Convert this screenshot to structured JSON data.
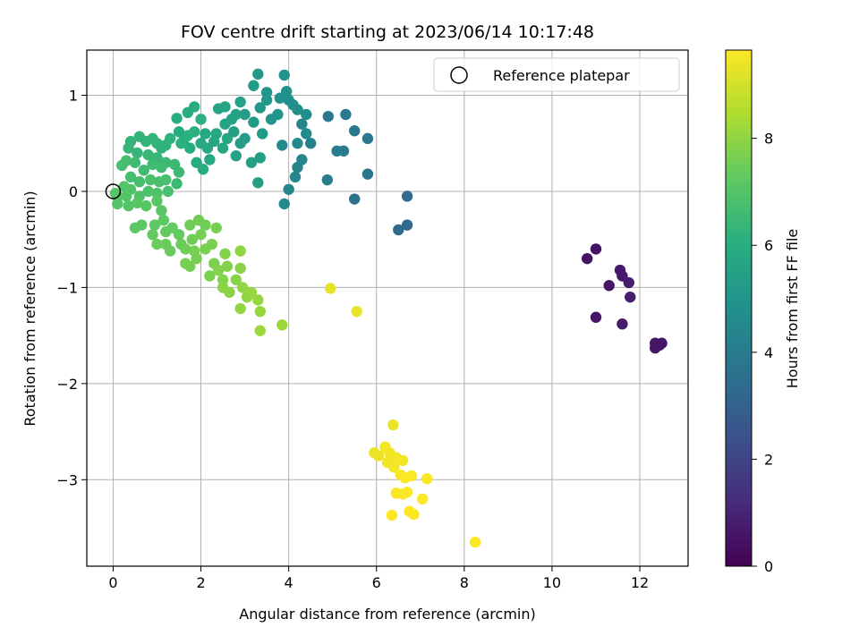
{
  "chart_data": {
    "type": "scatter",
    "title": "FOV centre drift starting at 2023/06/14 10:17:48",
    "xlabel": "Angular distance from reference (arcmin)",
    "ylabel": "Rotation from reference (arcmin)",
    "xlim": [
      -0.6,
      13.1
    ],
    "ylim": [
      -3.9,
      1.47
    ],
    "xticks": [
      0,
      2,
      4,
      6,
      8,
      10,
      12
    ],
    "yticks": [
      1,
      0,
      -1,
      -2,
      -3
    ],
    "xtick_labels": [
      "0",
      "2",
      "4",
      "6",
      "8",
      "10",
      "12"
    ],
    "ytick_labels": [
      "1",
      "0",
      "−1",
      "−2",
      "−3"
    ],
    "grid": true,
    "legend": {
      "position": "top-right",
      "entries": [
        "Reference platepar"
      ]
    },
    "reference_point": {
      "x": 0,
      "y": 0,
      "marker": "open-circle",
      "label": "Reference platepar"
    },
    "colorbar": {
      "label": "Hours from first FF file",
      "colormap": "viridis",
      "range": [
        0,
        9.65
      ],
      "ticks": [
        0,
        2,
        4,
        6,
        8
      ],
      "tick_labels": [
        "0",
        "2",
        "4",
        "6",
        "8"
      ]
    },
    "points": [
      {
        "x": 10.8,
        "y": -0.7,
        "c": 0.5
      },
      {
        "x": 11.0,
        "y": -0.6,
        "c": 0.5
      },
      {
        "x": 11.3,
        "y": -0.98,
        "c": 0.6
      },
      {
        "x": 11.0,
        "y": -1.31,
        "c": 0.6
      },
      {
        "x": 11.55,
        "y": -0.82,
        "c": 0.7
      },
      {
        "x": 11.6,
        "y": -0.88,
        "c": 0.7
      },
      {
        "x": 11.75,
        "y": -0.95,
        "c": 0.8
      },
      {
        "x": 11.78,
        "y": -1.1,
        "c": 0.8
      },
      {
        "x": 11.6,
        "y": -1.38,
        "c": 0.7
      },
      {
        "x": 12.35,
        "y": -1.58,
        "c": 0.6
      },
      {
        "x": 12.45,
        "y": -1.6,
        "c": 0.6
      },
      {
        "x": 12.5,
        "y": -1.58,
        "c": 0.6
      },
      {
        "x": 12.35,
        "y": -1.63,
        "c": 0.6
      },
      {
        "x": 6.5,
        "y": -0.4,
        "c": 3.3
      },
      {
        "x": 6.7,
        "y": -0.35,
        "c": 3.3
      },
      {
        "x": 6.7,
        "y": -0.05,
        "c": 3.4
      },
      {
        "x": 5.5,
        "y": -0.08,
        "c": 3.6
      },
      {
        "x": 5.8,
        "y": 0.18,
        "c": 3.7
      },
      {
        "x": 5.8,
        "y": 0.55,
        "c": 3.8
      },
      {
        "x": 5.5,
        "y": 0.63,
        "c": 3.8
      },
      {
        "x": 5.3,
        "y": 0.8,
        "c": 3.9
      },
      {
        "x": 4.9,
        "y": 0.78,
        "c": 3.9
      },
      {
        "x": 5.1,
        "y": 0.42,
        "c": 4.0
      },
      {
        "x": 5.25,
        "y": 0.42,
        "c": 4.0
      },
      {
        "x": 4.88,
        "y": 0.12,
        "c": 4.1
      },
      {
        "x": 4.5,
        "y": 0.5,
        "c": 4.2
      },
      {
        "x": 4.3,
        "y": 0.7,
        "c": 4.3
      },
      {
        "x": 4.3,
        "y": 0.33,
        "c": 4.3
      },
      {
        "x": 4.2,
        "y": 0.25,
        "c": 4.3
      },
      {
        "x": 4.15,
        "y": 0.15,
        "c": 4.4
      },
      {
        "x": 4.0,
        "y": 0.02,
        "c": 4.4
      },
      {
        "x": 3.9,
        "y": -0.13,
        "c": 4.5
      },
      {
        "x": 3.85,
        "y": 0.48,
        "c": 4.5
      },
      {
        "x": 4.2,
        "y": 0.5,
        "c": 4.6
      },
      {
        "x": 4.4,
        "y": 0.6,
        "c": 4.6
      },
      {
        "x": 4.4,
        "y": 0.8,
        "c": 4.7
      },
      {
        "x": 4.2,
        "y": 0.85,
        "c": 4.7
      },
      {
        "x": 4.1,
        "y": 0.9,
        "c": 4.8
      },
      {
        "x": 4.0,
        "y": 0.95,
        "c": 4.8
      },
      {
        "x": 3.95,
        "y": 1.04,
        "c": 4.9
      },
      {
        "x": 3.9,
        "y": 1.21,
        "c": 4.9
      },
      {
        "x": 3.8,
        "y": 0.97,
        "c": 4.9
      },
      {
        "x": 3.75,
        "y": 0.8,
        "c": 5.0
      },
      {
        "x": 3.6,
        "y": 0.75,
        "c": 5.0
      },
      {
        "x": 3.5,
        "y": 1.03,
        "c": 5.0
      },
      {
        "x": 3.5,
        "y": 0.95,
        "c": 5.1
      },
      {
        "x": 3.35,
        "y": 0.87,
        "c": 5.1
      },
      {
        "x": 3.3,
        "y": 1.22,
        "c": 5.1
      },
      {
        "x": 3.2,
        "y": 1.1,
        "c": 5.2
      },
      {
        "x": 3.4,
        "y": 0.6,
        "c": 5.2
      },
      {
        "x": 3.2,
        "y": 0.72,
        "c": 5.2
      },
      {
        "x": 3.0,
        "y": 0.8,
        "c": 5.3
      },
      {
        "x": 3.0,
        "y": 0.55,
        "c": 5.3
      },
      {
        "x": 2.9,
        "y": 0.5,
        "c": 5.3
      },
      {
        "x": 2.75,
        "y": 0.62,
        "c": 5.4
      },
      {
        "x": 3.35,
        "y": 0.35,
        "c": 5.4
      },
      {
        "x": 3.3,
        "y": 0.09,
        "c": 5.4
      },
      {
        "x": 3.15,
        "y": 0.3,
        "c": 5.4
      },
      {
        "x": 2.8,
        "y": 0.37,
        "c": 5.5
      },
      {
        "x": 2.9,
        "y": 0.93,
        "c": 5.5
      },
      {
        "x": 2.8,
        "y": 0.8,
        "c": 5.5
      },
      {
        "x": 2.7,
        "y": 0.75,
        "c": 5.6
      },
      {
        "x": 2.55,
        "y": 0.88,
        "c": 5.6
      },
      {
        "x": 2.4,
        "y": 0.86,
        "c": 5.6
      },
      {
        "x": 2.55,
        "y": 0.7,
        "c": 5.6
      },
      {
        "x": 2.6,
        "y": 0.55,
        "c": 5.7
      },
      {
        "x": 2.35,
        "y": 0.6,
        "c": 5.7
      },
      {
        "x": 2.5,
        "y": 0.45,
        "c": 5.7
      },
      {
        "x": 2.3,
        "y": 0.52,
        "c": 5.7
      },
      {
        "x": 2.1,
        "y": 0.6,
        "c": 5.8
      },
      {
        "x": 2.15,
        "y": 0.45,
        "c": 5.8
      },
      {
        "x": 2.0,
        "y": 0.5,
        "c": 5.8
      },
      {
        "x": 2.2,
        "y": 0.33,
        "c": 5.8
      },
      {
        "x": 2.05,
        "y": 0.23,
        "c": 5.9
      },
      {
        "x": 1.9,
        "y": 0.3,
        "c": 5.9
      },
      {
        "x": 1.75,
        "y": 0.45,
        "c": 5.9
      },
      {
        "x": 1.6,
        "y": 0.52,
        "c": 5.9
      },
      {
        "x": 1.5,
        "y": 0.62,
        "c": 6.0
      },
      {
        "x": 1.45,
        "y": 0.76,
        "c": 6.0
      },
      {
        "x": 1.7,
        "y": 0.82,
        "c": 6.0
      },
      {
        "x": 1.85,
        "y": 0.88,
        "c": 6.0
      },
      {
        "x": 2.0,
        "y": 0.75,
        "c": 6.1
      },
      {
        "x": 1.85,
        "y": 0.62,
        "c": 6.1
      },
      {
        "x": 1.7,
        "y": 0.58,
        "c": 6.1
      },
      {
        "x": 1.55,
        "y": 0.5,
        "c": 6.1
      },
      {
        "x": 1.3,
        "y": 0.55,
        "c": 6.2
      },
      {
        "x": 1.2,
        "y": 0.48,
        "c": 6.2
      },
      {
        "x": 1.1,
        "y": 0.45,
        "c": 6.2
      },
      {
        "x": 1.0,
        "y": 0.5,
        "c": 6.2
      },
      {
        "x": 0.9,
        "y": 0.55,
        "c": 6.3
      },
      {
        "x": 0.75,
        "y": 0.52,
        "c": 6.3
      },
      {
        "x": 0.6,
        "y": 0.57,
        "c": 6.3
      },
      {
        "x": 0.4,
        "y": 0.52,
        "c": 6.3
      },
      {
        "x": 0.35,
        "y": 0.45,
        "c": 6.4
      },
      {
        "x": 0.55,
        "y": 0.4,
        "c": 6.4
      },
      {
        "x": 0.8,
        "y": 0.38,
        "c": 6.4
      },
      {
        "x": 1.0,
        "y": 0.35,
        "c": 6.4
      },
      {
        "x": 1.2,
        "y": 0.3,
        "c": 6.5
      },
      {
        "x": 1.4,
        "y": 0.28,
        "c": 6.5
      },
      {
        "x": 1.5,
        "y": 0.2,
        "c": 6.5
      },
      {
        "x": 1.45,
        "y": 0.08,
        "c": 6.5
      },
      {
        "x": 1.1,
        "y": 0.25,
        "c": 6.6
      },
      {
        "x": 0.9,
        "y": 0.28,
        "c": 6.6
      },
      {
        "x": 0.7,
        "y": 0.22,
        "c": 6.6
      },
      {
        "x": 0.5,
        "y": 0.3,
        "c": 6.6
      },
      {
        "x": 0.3,
        "y": 0.32,
        "c": 6.7
      },
      {
        "x": 0.2,
        "y": 0.27,
        "c": 6.7
      },
      {
        "x": 0.4,
        "y": 0.15,
        "c": 6.7
      },
      {
        "x": 0.6,
        "y": 0.1,
        "c": 6.7
      },
      {
        "x": 0.85,
        "y": 0.12,
        "c": 6.8
      },
      {
        "x": 1.05,
        "y": 0.1,
        "c": 6.8
      },
      {
        "x": 1.2,
        "y": 0.12,
        "c": 6.8
      },
      {
        "x": 1.25,
        "y": 0.0,
        "c": 6.8
      },
      {
        "x": 1.0,
        "y": -0.02,
        "c": 6.9
      },
      {
        "x": 0.8,
        "y": 0.0,
        "c": 6.9
      },
      {
        "x": 0.6,
        "y": -0.05,
        "c": 6.9
      },
      {
        "x": 0.4,
        "y": 0.02,
        "c": 6.9
      },
      {
        "x": 0.25,
        "y": 0.05,
        "c": 7.0
      },
      {
        "x": 0.1,
        "y": -0.05,
        "c": 7.0
      },
      {
        "x": 0.1,
        "y": -0.13,
        "c": 7.0
      },
      {
        "x": 0.35,
        "y": -0.15,
        "c": 7.0
      },
      {
        "x": 0.55,
        "y": -0.12,
        "c": 7.1
      },
      {
        "x": 0.75,
        "y": -0.15,
        "c": 7.1
      },
      {
        "x": 1.0,
        "y": -0.1,
        "c": 7.1
      },
      {
        "x": 1.1,
        "y": -0.2,
        "c": 7.1
      },
      {
        "x": 1.15,
        "y": -0.3,
        "c": 7.2
      },
      {
        "x": 0.95,
        "y": -0.35,
        "c": 7.2
      },
      {
        "x": 0.65,
        "y": -0.35,
        "c": 7.2
      },
      {
        "x": 0.5,
        "y": -0.38,
        "c": 7.2
      },
      {
        "x": 0.9,
        "y": -0.45,
        "c": 7.3
      },
      {
        "x": 1.2,
        "y": -0.42,
        "c": 7.3
      },
      {
        "x": 1.35,
        "y": -0.38,
        "c": 7.3
      },
      {
        "x": 1.5,
        "y": -0.45,
        "c": 7.3
      },
      {
        "x": 1.2,
        "y": -0.55,
        "c": 7.4
      },
      {
        "x": 1.0,
        "y": -0.55,
        "c": 7.4
      },
      {
        "x": 1.3,
        "y": -0.62,
        "c": 7.4
      },
      {
        "x": 1.55,
        "y": -0.55,
        "c": 7.4
      },
      {
        "x": 1.65,
        "y": -0.6,
        "c": 7.5
      },
      {
        "x": 1.8,
        "y": -0.5,
        "c": 7.5
      },
      {
        "x": 1.75,
        "y": -0.35,
        "c": 7.5
      },
      {
        "x": 1.95,
        "y": -0.3,
        "c": 7.5
      },
      {
        "x": 2.1,
        "y": -0.35,
        "c": 7.5
      },
      {
        "x": 2.0,
        "y": -0.45,
        "c": 7.6
      },
      {
        "x": 1.85,
        "y": -0.62,
        "c": 7.6
      },
      {
        "x": 1.65,
        "y": -0.75,
        "c": 7.6
      },
      {
        "x": 1.75,
        "y": -0.78,
        "c": 7.6
      },
      {
        "x": 1.9,
        "y": -0.7,
        "c": 7.6
      },
      {
        "x": 2.1,
        "y": -0.6,
        "c": 7.7
      },
      {
        "x": 2.25,
        "y": -0.55,
        "c": 7.7
      },
      {
        "x": 2.3,
        "y": -0.75,
        "c": 7.7
      },
      {
        "x": 2.2,
        "y": -0.88,
        "c": 7.7
      },
      {
        "x": 2.4,
        "y": -0.82,
        "c": 7.8
      },
      {
        "x": 2.55,
        "y": -0.65,
        "c": 7.8
      },
      {
        "x": 2.6,
        "y": -0.78,
        "c": 7.8
      },
      {
        "x": 2.5,
        "y": -0.92,
        "c": 7.8
      },
      {
        "x": 2.5,
        "y": -1.0,
        "c": 7.9
      },
      {
        "x": 2.65,
        "y": -1.05,
        "c": 7.9
      },
      {
        "x": 2.8,
        "y": -0.92,
        "c": 7.9
      },
      {
        "x": 2.9,
        "y": -0.8,
        "c": 7.9
      },
      {
        "x": 2.9,
        "y": -0.62,
        "c": 8.0
      },
      {
        "x": 2.95,
        "y": -1.0,
        "c": 8.0
      },
      {
        "x": 3.05,
        "y": -1.1,
        "c": 8.0
      },
      {
        "x": 2.9,
        "y": -1.22,
        "c": 8.0
      },
      {
        "x": 3.15,
        "y": -1.05,
        "c": 8.1
      },
      {
        "x": 3.3,
        "y": -1.13,
        "c": 8.1
      },
      {
        "x": 3.35,
        "y": -1.25,
        "c": 8.1
      },
      {
        "x": 3.35,
        "y": -1.45,
        "c": 8.2
      },
      {
        "x": 3.85,
        "y": -1.39,
        "c": 8.2
      },
      {
        "x": 2.35,
        "y": -0.38,
        "c": 7.6
      },
      {
        "x": 0.3,
        "y": -0.05,
        "c": 7.0
      },
      {
        "x": 0.05,
        "y": -0.02,
        "c": 7.0
      },
      {
        "x": 4.95,
        "y": -1.01,
        "c": 9.3
      },
      {
        "x": 5.55,
        "y": -1.25,
        "c": 9.3
      },
      {
        "x": 6.38,
        "y": -2.43,
        "c": 9.4
      },
      {
        "x": 5.95,
        "y": -2.72,
        "c": 9.4
      },
      {
        "x": 6.05,
        "y": -2.75,
        "c": 9.4
      },
      {
        "x": 6.2,
        "y": -2.66,
        "c": 9.5
      },
      {
        "x": 6.3,
        "y": -2.72,
        "c": 9.5
      },
      {
        "x": 6.25,
        "y": -2.82,
        "c": 9.5
      },
      {
        "x": 6.4,
        "y": -2.87,
        "c": 9.5
      },
      {
        "x": 6.45,
        "y": -2.77,
        "c": 9.5
      },
      {
        "x": 6.6,
        "y": -2.8,
        "c": 9.5
      },
      {
        "x": 6.55,
        "y": -2.95,
        "c": 9.6
      },
      {
        "x": 6.65,
        "y": -2.98,
        "c": 9.6
      },
      {
        "x": 6.8,
        "y": -2.96,
        "c": 9.6
      },
      {
        "x": 7.15,
        "y": -2.99,
        "c": 9.6
      },
      {
        "x": 6.45,
        "y": -3.14,
        "c": 9.6
      },
      {
        "x": 6.6,
        "y": -3.15,
        "c": 9.6
      },
      {
        "x": 6.7,
        "y": -3.13,
        "c": 9.6
      },
      {
        "x": 7.05,
        "y": -3.2,
        "c": 9.6
      },
      {
        "x": 6.75,
        "y": -3.33,
        "c": 9.65
      },
      {
        "x": 6.85,
        "y": -3.36,
        "c": 9.65
      },
      {
        "x": 6.35,
        "y": -3.37,
        "c": 9.65
      },
      {
        "x": 8.25,
        "y": -3.65,
        "c": 9.65
      }
    ]
  }
}
